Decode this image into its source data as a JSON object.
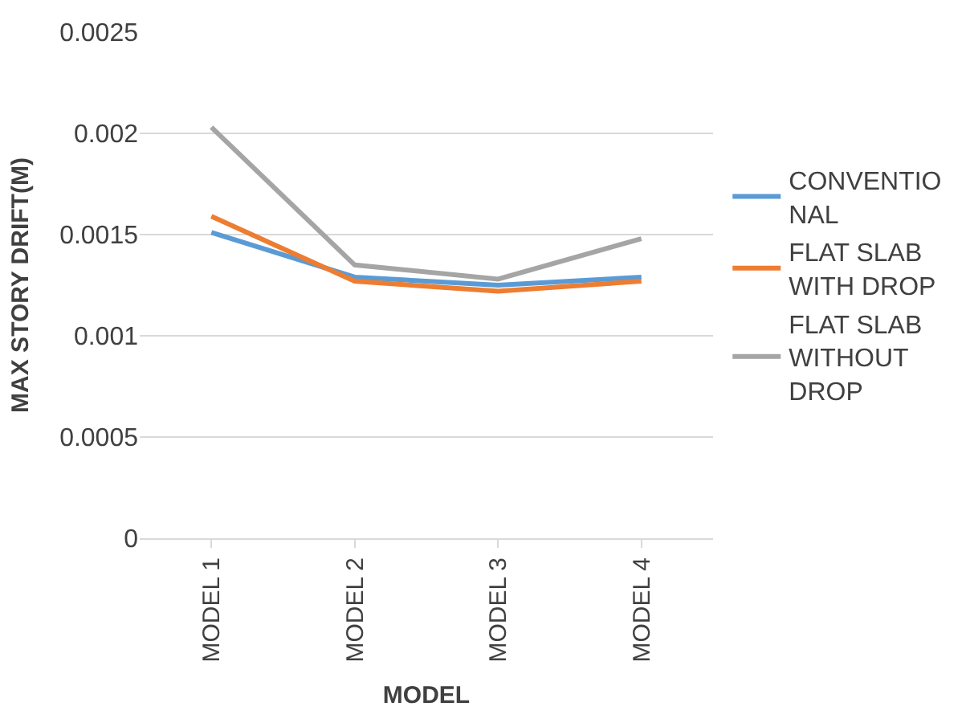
{
  "chart_data": {
    "type": "line",
    "xlabel": "MODEL",
    "ylabel": "MAX STORY DRIFT(M)",
    "categories": [
      "MODEL 1",
      "MODEL 2",
      "MODEL 3",
      "MODEL 4"
    ],
    "series": [
      {
        "name": "CONVENTIONAL",
        "color": "#5b9bd5",
        "values": [
          0.00151,
          0.00129,
          0.00125,
          0.00129
        ]
      },
      {
        "name": "FLAT SLAB WITH DROP",
        "color": "#ed7d31",
        "values": [
          0.00159,
          0.00127,
          0.00122,
          0.00127
        ]
      },
      {
        "name": "FLAT SLAB WITHOUT DROP",
        "color": "#a5a5a5",
        "values": [
          0.00203,
          0.00135,
          0.00128,
          0.00148
        ]
      }
    ],
    "ylim": [
      0,
      0.0025
    ],
    "yticks": [
      0,
      0.0005,
      0.001,
      0.0015,
      0.002,
      0.0025
    ],
    "grid": "y",
    "legend": "right",
    "marker": "none",
    "line_style": "solid"
  }
}
